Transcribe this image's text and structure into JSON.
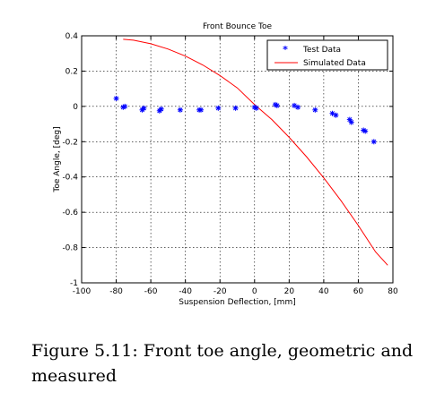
{
  "chart_data": {
    "type": "scatter",
    "title": "Front Bounce Toe",
    "xlabel": "Suspension Deflection, [mm]",
    "ylabel": "Toe Angle, [deg]",
    "xlim": [
      -100,
      80
    ],
    "ylim": [
      -1,
      0.4
    ],
    "xticks": [
      -100,
      -80,
      -60,
      -40,
      -20,
      0,
      20,
      40,
      60,
      80
    ],
    "yticks": [
      -1,
      -0.8,
      -0.6,
      -0.4,
      -0.2,
      0,
      0.2,
      0.4
    ],
    "xtick_labels": [
      "-100",
      "-80",
      "-60",
      "-40",
      "-20",
      "0",
      "20",
      "40",
      "60",
      "80"
    ],
    "ytick_labels": [
      "-1",
      "-0.8",
      "-0.6",
      "-0.4",
      "-0.2",
      "0",
      "0.2",
      "0.4"
    ],
    "grid": true,
    "legend_position": "top-right",
    "series": [
      {
        "name": "Test Data",
        "kind": "markers",
        "marker": "star",
        "color": "#0000ff",
        "x": [
          -80,
          -76,
          -75,
          -65,
          -64,
          -55,
          -54,
          -43,
          -32,
          -31,
          -21,
          -11,
          0,
          1,
          12,
          13,
          23,
          25,
          35,
          45,
          47,
          55,
          56,
          63,
          64,
          69
        ],
        "y": [
          0.045,
          -0.005,
          0.0,
          -0.02,
          -0.01,
          -0.025,
          -0.015,
          -0.02,
          -0.02,
          -0.02,
          -0.01,
          -0.01,
          -0.005,
          -0.01,
          0.01,
          0.005,
          0.005,
          -0.005,
          -0.02,
          -0.04,
          -0.05,
          -0.075,
          -0.09,
          -0.135,
          -0.14,
          -0.2
        ]
      },
      {
        "name": "Simulated Data",
        "kind": "line",
        "color": "#ff0000",
        "x": [
          -76,
          -70,
          -60,
          -50,
          -40,
          -30,
          -20,
          -10,
          0,
          10,
          20,
          30,
          40,
          50,
          60,
          70,
          77
        ],
        "y": [
          0.38,
          0.375,
          0.355,
          0.325,
          0.285,
          0.235,
          0.175,
          0.105,
          0.01,
          -0.075,
          -0.175,
          -0.285,
          -0.405,
          -0.535,
          -0.675,
          -0.825,
          -0.9
        ]
      }
    ]
  },
  "caption": "Figure 5.11: Front toe angle, geometric and measured"
}
